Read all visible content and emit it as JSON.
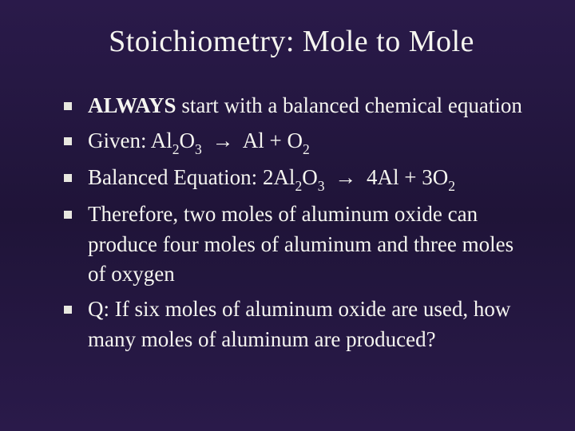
{
  "slide": {
    "title": "Stoichiometry: Mole to Mole",
    "background_gradient": [
      "#2a1a4a",
      "#1f1438",
      "#2a1a4a"
    ],
    "text_color": "#f5f5f0",
    "bullet_color": "#e8e8e0",
    "title_fontsize": 38,
    "body_fontsize": 27,
    "font_family": "Garamond",
    "bullets": [
      {
        "bold_lead": "ALWAYS",
        "rest": " start with a balanced chemical equation"
      },
      {
        "prefix": "Given: ",
        "formula_parts": [
          "Al",
          "2",
          "O",
          "3",
          "  ",
          "→",
          "   Al  +  O",
          "2"
        ]
      },
      {
        "prefix": "Balanced Equation: ",
        "formula_parts": [
          "2Al",
          "2",
          "O",
          "3",
          "  ",
          "→",
          "  4Al  +  3O",
          "2"
        ]
      },
      {
        "text": "Therefore, two moles of aluminum oxide can produce four moles of aluminum and three moles of oxygen"
      },
      {
        "text": "Q: If six moles of aluminum oxide are used, how many moles of aluminum are produced?"
      }
    ]
  }
}
